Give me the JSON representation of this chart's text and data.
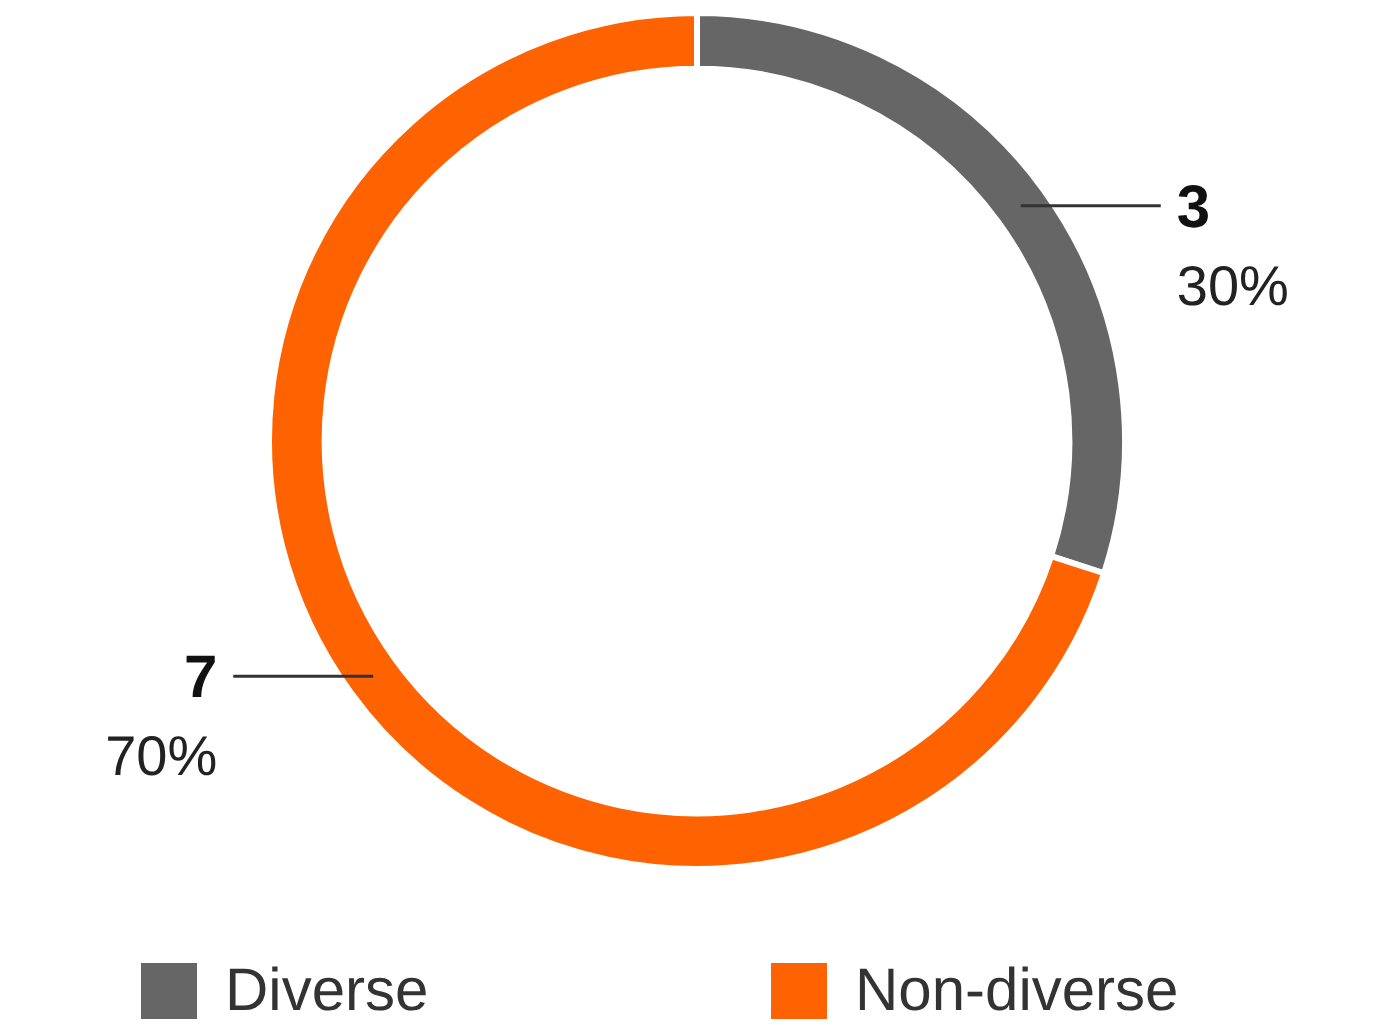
{
  "chart_data": {
    "type": "donut",
    "categories": [
      "Diverse",
      "Non-diverse"
    ],
    "values": [
      30,
      70
    ],
    "colors": [
      "#666666",
      "#ff6200"
    ],
    "value_labels": [
      "30%",
      "70%"
    ],
    "annotations": [
      {
        "text": "3",
        "x": "Diverse"
      },
      {
        "text": "7",
        "x": "Non-diverse"
      }
    ],
    "legend": "bottom"
  }
}
